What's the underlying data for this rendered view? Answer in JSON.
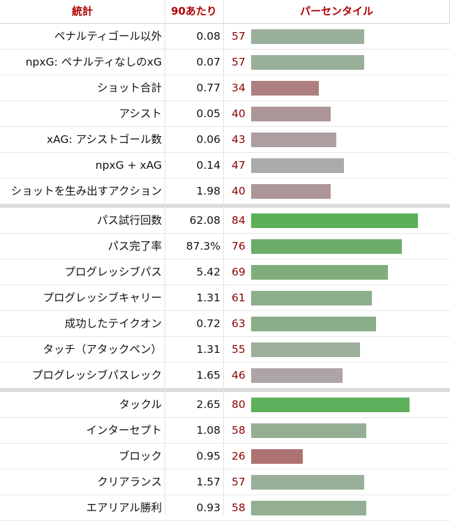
{
  "header": {
    "stat_col": "統計",
    "per90_col": "90あたり",
    "percentile_col": "パーセンタイル"
  },
  "groups": [
    {
      "rows": [
        {
          "stat": "ペナルティゴール以外",
          "value": "0.08",
          "percentile": 57,
          "color": "#9aaf99"
        },
        {
          "stat": "npxG: ペナルティなしのxG",
          "value": "0.07",
          "percentile": 57,
          "color": "#9aaf99"
        },
        {
          "stat": "ショット合計",
          "value": "0.77",
          "percentile": 34,
          "color": "#ad7f7f"
        },
        {
          "stat": "アシスト",
          "value": "0.05",
          "percentile": 40,
          "color": "#ad9697"
        },
        {
          "stat": "xAG: アシストゴール数",
          "value": "0.06",
          "percentile": 43,
          "color": "#ae9e9f"
        },
        {
          "stat": "npxG + xAG",
          "value": "0.14",
          "percentile": 47,
          "color": "#adaaaa"
        },
        {
          "stat": "ショットを生み出すアクション",
          "value": "1.98",
          "percentile": 40,
          "color": "#ad9697"
        }
      ]
    },
    {
      "rows": [
        {
          "stat": "パス試行回数",
          "value": "62.08",
          "percentile": 84,
          "color": "#5cb05a"
        },
        {
          "stat": "パス完了率",
          "value": "87.3%",
          "percentile": 76,
          "color": "#6cad69"
        },
        {
          "stat": "プログレッシブパス",
          "value": "5.42",
          "percentile": 69,
          "color": "#7fae7c"
        },
        {
          "stat": "プログレッシブキャリー",
          "value": "1.31",
          "percentile": 61,
          "color": "#8eaf8c"
        },
        {
          "stat": "成功したテイクオン",
          "value": "0.72",
          "percentile": 63,
          "color": "#8aae88"
        },
        {
          "stat": "タッチ（アタックペン）",
          "value": "1.31",
          "percentile": 55,
          "color": "#9db09c"
        },
        {
          "stat": "プログレッシブパスレック",
          "value": "1.65",
          "percentile": 46,
          "color": "#aca4a5"
        }
      ]
    },
    {
      "rows": [
        {
          "stat": "タックル",
          "value": "2.65",
          "percentile": 80,
          "color": "#5fb05d"
        },
        {
          "stat": "インターセプト",
          "value": "1.08",
          "percentile": 58,
          "color": "#95ae93"
        },
        {
          "stat": "ブロック",
          "value": "0.95",
          "percentile": 26,
          "color": "#ae7272"
        },
        {
          "stat": "クリアランス",
          "value": "1.57",
          "percentile": 57,
          "color": "#9aaf99"
        },
        {
          "stat": "エアリアル勝利",
          "value": "0.93",
          "percentile": 58,
          "color": "#95ae93"
        }
      ]
    }
  ]
}
